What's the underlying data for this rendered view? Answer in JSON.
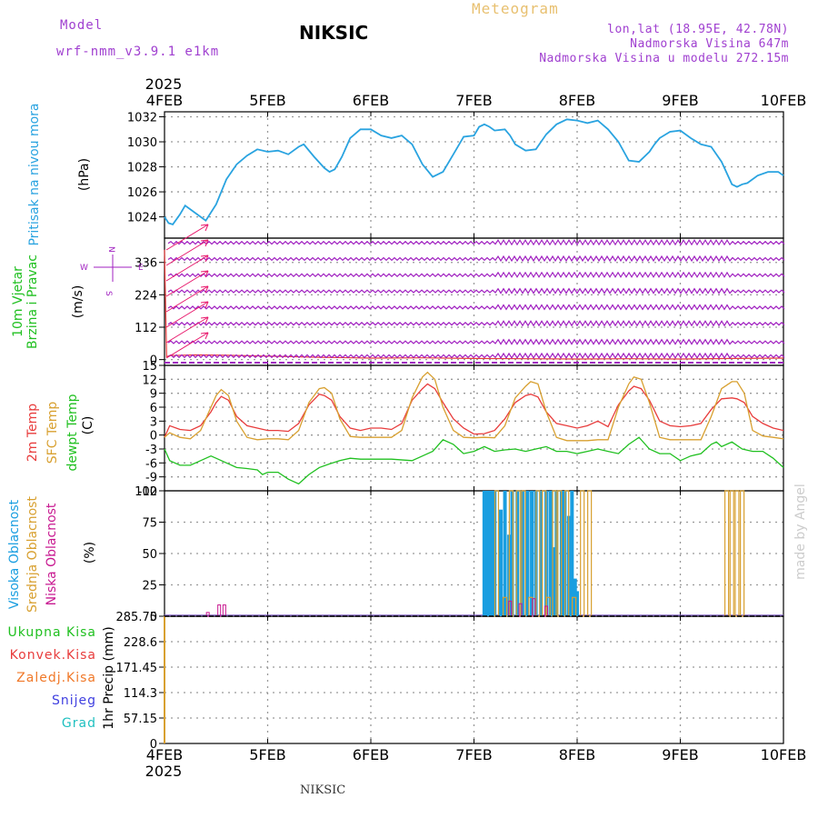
{
  "header": {
    "model_label": "Model",
    "model_name": "wrf-nmm_v3.9.1 e1km",
    "station": "NIKSIC",
    "meteogram": "Meteogram",
    "lonlat": "lon,lat (18.95E, 42.78N)",
    "elevation": "Nadmorska Visina 647m",
    "model_elevation": "Nadmorska Visina u modelu 272.15m",
    "credit": "made by Angel",
    "footer_station": "NIKSIC"
  },
  "colors": {
    "pressure": "#29a3e0",
    "wind": "#a020c0",
    "wind_speed": "#e8186c",
    "t2m": "#e83c3c",
    "sfc": "#d8a030",
    "dewpt": "#20c020",
    "cloud_high": "#1a9ee0",
    "cloud_mid": "#d8a030",
    "cloud_low": "#c81890",
    "precip_total": "#20c020",
    "precip_conv": "#e83c3c",
    "precip_frz": "#f07828",
    "precip_snow": "#4040e0",
    "precip_hail": "#20c0c0"
  },
  "chart_data": [
    {
      "type": "line",
      "panel": "pressure",
      "ylabel_side": "Pritisak na nivou mora",
      "ylabel_unit": "(hPa)",
      "x_dates": [
        "4FEB",
        "5FEB",
        "6FEB",
        "7FEB",
        "8FEB",
        "9FEB",
        "10FEB"
      ],
      "year": "2025",
      "xlim": [
        0,
        6
      ],
      "ylim": [
        1022.3,
        1032.4
      ],
      "yticks": [
        "1024",
        "1026",
        "1028",
        "1030",
        "1032"
      ],
      "series": [
        {
          "name": "Pritisak na nivou mora",
          "x": [
            0,
            0.04,
            0.08,
            0.15,
            0.2,
            0.3,
            0.4,
            0.5,
            0.6,
            0.7,
            0.8,
            0.9,
            1,
            1.1,
            1.2,
            1.3,
            1.35,
            1.45,
            1.55,
            1.6,
            1.65,
            1.72,
            1.8,
            1.9,
            2,
            2.1,
            2.2,
            2.3,
            2.4,
            2.5,
            2.6,
            2.7,
            2.8,
            2.9,
            3,
            3.05,
            3.1,
            3.15,
            3.2,
            3.3,
            3.35,
            3.4,
            3.5,
            3.6,
            3.7,
            3.8,
            3.9,
            4,
            4.1,
            4.2,
            4.3,
            4.4,
            4.5,
            4.6,
            4.7,
            4.75,
            4.8,
            4.9,
            5,
            5.1,
            5.2,
            5.3,
            5.4,
            5.5,
            5.55,
            5.6,
            5.65,
            5.75,
            5.85,
            5.95,
            6
          ],
          "values": [
            1024.0,
            1023.5,
            1023.4,
            1024.2,
            1024.9,
            1024.3,
            1023.7,
            1025.0,
            1027.0,
            1028.2,
            1028.9,
            1029.4,
            1029.2,
            1029.3,
            1029.0,
            1029.6,
            1029.8,
            1028.8,
            1027.9,
            1027.6,
            1027.8,
            1028.8,
            1030.3,
            1031.0,
            1031.0,
            1030.5,
            1030.3,
            1030.5,
            1029.8,
            1028.2,
            1027.2,
            1027.6,
            1029.0,
            1030.4,
            1030.5,
            1031.2,
            1031.4,
            1031.2,
            1030.9,
            1031.0,
            1030.5,
            1029.8,
            1029.3,
            1029.4,
            1030.6,
            1031.4,
            1031.8,
            1031.7,
            1031.5,
            1031.7,
            1031.0,
            1030.0,
            1028.5,
            1028.4,
            1029.2,
            1029.8,
            1030.3,
            1030.8,
            1030.9,
            1030.3,
            1029.8,
            1029.6,
            1028.4,
            1026.6,
            1026.4,
            1026.6,
            1026.7,
            1027.3,
            1027.6,
            1027.6,
            1027.3
          ]
        }
      ]
    },
    {
      "type": "line",
      "panel": "wind",
      "ylabel_side": "10m Vjetar Brzina i Pravac",
      "ylabel_unit": "(m/s)",
      "compass": {
        "n": "N",
        "s": "S",
        "e": "E",
        "w": "W"
      },
      "xlim": [
        0,
        6
      ],
      "ylim": [
        -20,
        420
      ],
      "yticks": [
        "0",
        "112",
        "224",
        "336"
      ],
      "series": [
        {
          "name": "10m Vjetar Brzina",
          "x": [
            0,
            0.02,
            0.05,
            0.3,
            0.6,
            1,
            1.5,
            2,
            2.5,
            3,
            3.5,
            4,
            4.5,
            5,
            5.5,
            6
          ],
          "values": [
            380,
            10,
            14,
            16,
            15,
            12,
            8,
            5,
            6,
            4,
            3,
            2,
            3,
            2,
            4,
            5
          ]
        }
      ]
    },
    {
      "type": "line",
      "panel": "temperature",
      "ylabel_side": [
        "2m Temp",
        "SFC Temp",
        "dewpt Temp"
      ],
      "ylabel_unit": "(C)",
      "xlim": [
        0,
        6
      ],
      "ylim": [
        -12,
        15
      ],
      "yticks": [
        "-12",
        "-9",
        "-6",
        "-3",
        "0",
        "3",
        "6",
        "9",
        "12",
        "15"
      ],
      "series": [
        {
          "name": "2m Temp",
          "x": [
            0,
            0.05,
            0.15,
            0.25,
            0.35,
            0.45,
            0.5,
            0.55,
            0.62,
            0.7,
            0.8,
            0.9,
            1,
            1.1,
            1.2,
            1.3,
            1.4,
            1.5,
            1.55,
            1.62,
            1.7,
            1.8,
            1.9,
            2,
            2.1,
            2.2,
            2.3,
            2.4,
            2.5,
            2.55,
            2.62,
            2.7,
            2.8,
            2.9,
            3,
            3.1,
            3.2,
            3.3,
            3.4,
            3.5,
            3.55,
            3.62,
            3.7,
            3.8,
            3.9,
            4,
            4.1,
            4.2,
            4.3,
            4.4,
            4.5,
            4.55,
            4.62,
            4.7,
            4.8,
            4.9,
            5,
            5.1,
            5.2,
            5.3,
            5.4,
            5.5,
            5.55,
            5.62,
            5.7,
            5.8,
            5.9,
            6
          ],
          "values": [
            -0.5,
            2,
            1.2,
            1,
            2,
            5,
            7,
            8.3,
            7.5,
            4,
            2,
            1.5,
            1,
            1,
            0.8,
            2.5,
            6.5,
            8.8,
            8.5,
            7.5,
            4,
            1.5,
            1,
            1.5,
            1.5,
            1.2,
            2.5,
            7.5,
            10,
            11,
            10,
            7,
            3.5,
            1.5,
            0.2,
            0.3,
            1,
            3.5,
            7,
            8.5,
            8.8,
            8.2,
            5,
            2.5,
            2,
            1.5,
            2,
            3,
            1.8,
            6.5,
            9.5,
            10.5,
            10,
            7.5,
            3,
            2,
            1.8,
            2,
            2.5,
            5.5,
            7.8,
            8,
            7.8,
            7,
            4,
            2.5,
            1.5,
            1
          ]
        },
        {
          "name": "SFC Temp",
          "x": [
            0,
            0.05,
            0.15,
            0.25,
            0.35,
            0.45,
            0.5,
            0.55,
            0.62,
            0.7,
            0.8,
            0.9,
            1,
            1.1,
            1.2,
            1.3,
            1.4,
            1.5,
            1.55,
            1.62,
            1.7,
            1.8,
            1.9,
            2,
            2.1,
            2.2,
            2.3,
            2.4,
            2.5,
            2.55,
            2.62,
            2.7,
            2.8,
            2.9,
            3,
            3.1,
            3.2,
            3.3,
            3.4,
            3.5,
            3.55,
            3.62,
            3.7,
            3.8,
            3.9,
            4,
            4.1,
            4.2,
            4.3,
            4.4,
            4.5,
            4.55,
            4.62,
            4.7,
            4.8,
            4.9,
            5,
            5.1,
            5.2,
            5.3,
            5.4,
            5.5,
            5.55,
            5.62,
            5.7,
            5.8,
            5.9,
            6
          ],
          "values": [
            -0.5,
            0.5,
            -0.5,
            -0.8,
            1,
            6,
            8.5,
            9.8,
            8.5,
            3,
            -0.5,
            -1,
            -0.8,
            -0.8,
            -1,
            1,
            7,
            10,
            10.2,
            9,
            3.5,
            -0.3,
            -0.5,
            -0.5,
            -0.5,
            -0.5,
            1,
            8,
            12.5,
            13.5,
            12,
            6,
            1,
            -0.5,
            -0.6,
            -0.5,
            -0.6,
            2,
            8,
            10.5,
            11.5,
            11,
            5,
            -0.5,
            -1.2,
            -1.2,
            -1.2,
            -1,
            -1,
            6,
            11,
            12.5,
            12,
            7,
            -0.5,
            -1,
            -1,
            -1,
            -1,
            4,
            10,
            11.5,
            11.5,
            9,
            1,
            -0.2,
            -0.5,
            -0.8
          ]
        },
        {
          "name": "dewpt Temp",
          "x": [
            0,
            0.05,
            0.15,
            0.25,
            0.35,
            0.45,
            0.5,
            0.6,
            0.7,
            0.8,
            0.9,
            0.95,
            1,
            1.1,
            1.2,
            1.3,
            1.4,
            1.5,
            1.6,
            1.7,
            1.8,
            1.9,
            2,
            2.2,
            2.4,
            2.5,
            2.6,
            2.7,
            2.8,
            2.9,
            3,
            3.1,
            3.2,
            3.3,
            3.4,
            3.5,
            3.6,
            3.7,
            3.8,
            3.9,
            4,
            4.1,
            4.2,
            4.3,
            4.4,
            4.5,
            4.6,
            4.7,
            4.8,
            4.9,
            5,
            5.1,
            5.2,
            5.3,
            5.35,
            5.4,
            5.5,
            5.6,
            5.7,
            5.8,
            5.9,
            6
          ],
          "values": [
            -3,
            -5.5,
            -6.5,
            -6.5,
            -5.5,
            -4.5,
            -5,
            -6,
            -7,
            -7.2,
            -7.5,
            -8.5,
            -8,
            -8,
            -9.5,
            -10.5,
            -8.5,
            -7,
            -6.2,
            -5.5,
            -5,
            -5.2,
            -5.2,
            -5.2,
            -5.5,
            -4.5,
            -3.5,
            -1,
            -2,
            -4,
            -3.5,
            -2.5,
            -3.5,
            -3.2,
            -3,
            -3.5,
            -3,
            -2.5,
            -3.5,
            -3.5,
            -4,
            -3.5,
            -3,
            -3.5,
            -4,
            -2,
            -0.5,
            -3,
            -4,
            -4,
            -5.5,
            -4.5,
            -4,
            -2,
            -1.5,
            -2.5,
            -1.5,
            -3,
            -3.5,
            -3.5,
            -5,
            -7
          ]
        }
      ]
    },
    {
      "type": "bar",
      "panel": "clouds",
      "ylabel_side": [
        "Visoka Oblacnost",
        "Srednja Oblacnost",
        "Niska Oblacnost"
      ],
      "ylabel_unit": "(%)",
      "xlim": [
        0,
        6
      ],
      "ylim": [
        0,
        100
      ],
      "yticks": [
        "0",
        "25",
        "50",
        "75",
        "100"
      ],
      "series": [
        {
          "name": "Visoka Oblacnost",
          "x": [
            3.1,
            3.12,
            3.15,
            3.18,
            3.2,
            3.26,
            3.3,
            3.34,
            3.37,
            3.42,
            3.47,
            3.52,
            3.56,
            3.6,
            3.65,
            3.7,
            3.74,
            3.77,
            3.8,
            3.85,
            3.88,
            3.92,
            3.95,
            3.98,
            4.0
          ],
          "values": [
            100,
            100,
            100,
            100,
            100,
            85,
            100,
            65,
            100,
            100,
            100,
            100,
            100,
            100,
            100,
            100,
            100,
            55,
            100,
            100,
            100,
            80,
            100,
            30,
            20
          ]
        },
        {
          "name": "Srednja Oblacnost",
          "x": [
            3.22,
            3.3,
            3.36,
            3.43,
            3.48,
            3.55,
            3.62,
            3.68,
            3.72,
            3.78,
            3.83,
            3.9,
            3.97,
            4.05,
            4.12,
            5.45,
            5.5,
            5.55,
            5.6
          ],
          "values": [
            100,
            15,
            100,
            100,
            100,
            15,
            100,
            100,
            15,
            100,
            100,
            100,
            15,
            100,
            100,
            100,
            100,
            100,
            100
          ]
        },
        {
          "name": "Niska Oblacnost",
          "x": [
            0.42,
            0.53,
            0.58,
            3.35,
            3.45,
            3.58,
            3.7
          ],
          "values": [
            3,
            9,
            9,
            12,
            10,
            14,
            8
          ]
        }
      ]
    },
    {
      "type": "bar",
      "panel": "precipitation",
      "ylabel_side": [
        "Ukupna Kisa",
        "Konvek.Kisa",
        "Zaledj.Kisa",
        "Snijeg",
        "Grad"
      ],
      "ylabel_unit": "1hr Precip (mm)",
      "xlim": [
        0,
        6
      ],
      "ylim": [
        0,
        285.75
      ],
      "yticks": [
        "0",
        "57.15",
        "114.3",
        "171.45",
        "228.6",
        "285.75"
      ],
      "series": [
        {
          "name": "Ukupna Kisa",
          "x": [
            0.0
          ],
          "values": [
            285.75
          ]
        }
      ]
    }
  ]
}
